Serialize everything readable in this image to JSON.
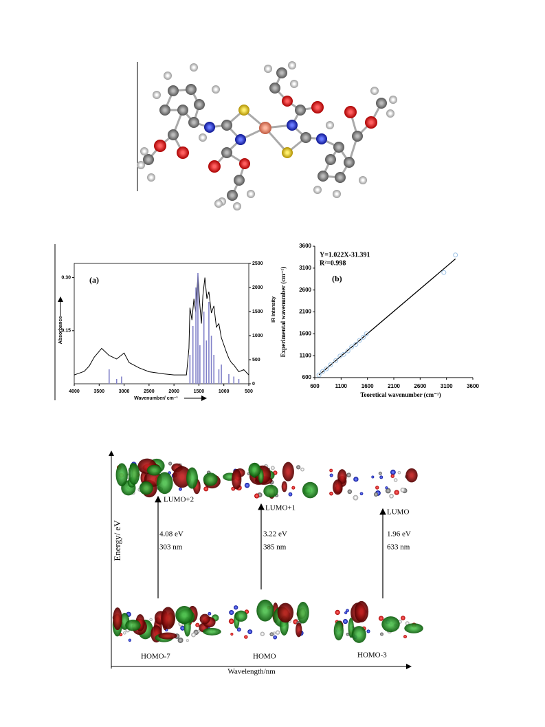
{
  "chart_data": [
    {
      "type": "line",
      "label": "(a)",
      "x_label": "Wavenumber/ cm⁻¹",
      "y_label": "Absorbance",
      "y2_label": "IR Intensity",
      "xlim": [
        4000,
        500
      ],
      "xticks": [
        4000,
        3500,
        3000,
        2500,
        2000,
        1500,
        1000,
        500
      ],
      "ylim": [
        0,
        0.34
      ],
      "yticks": [
        0.15,
        {
          "value": 0.3,
          "label": "0.30"
        }
      ],
      "y2lim": [
        0,
        2500
      ],
      "y2ticks": [
        0,
        500,
        1000,
        1500,
        2000,
        2500
      ],
      "series": [
        {
          "type": "line",
          "color": "#000000",
          "x": [
            4000,
            3900,
            3800,
            3700,
            3600,
            3450,
            3300,
            3150,
            3000,
            2900,
            2700,
            2500,
            2200,
            2000,
            1750,
            1700,
            1680,
            1640,
            1600,
            1560,
            1520,
            1480,
            1450,
            1420,
            1380,
            1340,
            1300,
            1250,
            1200,
            1150,
            1100,
            1050,
            1000,
            950,
            900,
            850,
            800,
            700,
            600,
            500
          ],
          "values": [
            0.025,
            0.03,
            0.035,
            0.05,
            0.075,
            0.1,
            0.08,
            0.07,
            0.087,
            0.06,
            0.045,
            0.034,
            0.028,
            0.025,
            0.025,
            0.1,
            0.215,
            0.18,
            0.24,
            0.2,
            0.31,
            0.22,
            0.17,
            0.25,
            0.3,
            0.24,
            0.26,
            0.2,
            0.22,
            0.16,
            0.17,
            0.13,
            0.11,
            0.09,
            0.072,
            0.06,
            0.053,
            0.034,
            0.04,
            0.025
          ]
        },
        {
          "type": "bar",
          "axis": "y2",
          "color": "#8080c8",
          "x": [
            3300,
            3150,
            3050,
            1680,
            1620,
            1560,
            1520,
            1480,
            1400,
            1350,
            1300,
            1250,
            1200,
            1100,
            1050,
            900,
            800,
            700
          ],
          "values": [
            300,
            100,
            150,
            600,
            1200,
            2000,
            2300,
            800,
            1500,
            900,
            1700,
            1000,
            600,
            300,
            400,
            200,
            150,
            100
          ]
        }
      ]
    },
    {
      "type": "scatter",
      "label": "(b)",
      "x_label": "Teoretical wavenumber (cm⁻¹)",
      "y_label": "Experimental wavenumber (cm⁻¹)",
      "equation": "Y=1.022X-31.391",
      "r_squared": "R²=0.998",
      "trendline": {
        "slope": 1.022,
        "intercept": -31.391
      },
      "xlim": [
        600,
        3600
      ],
      "xticks": [
        600,
        1100,
        1600,
        2100,
        2600,
        3100,
        3600
      ],
      "ylim": [
        600,
        3600
      ],
      "yticks": [
        600,
        1100,
        1600,
        2100,
        2600,
        3100,
        3600
      ],
      "color": "#9ec3e6",
      "x": [
        680,
        750,
        820,
        900,
        1000,
        1080,
        1150,
        1230,
        1300,
        1380,
        1450,
        1520,
        1580,
        3050,
        3270
      ],
      "values": [
        660,
        740,
        800,
        890,
        990,
        1090,
        1130,
        1210,
        1300,
        1360,
        1450,
        1520,
        1600,
        3000,
        3400
      ]
    }
  ],
  "diagram": {
    "y_axis_label": "Energy/ eV",
    "x_axis_label": "Wavelength/nm",
    "transitions": [
      {
        "upper": "LUMO+2",
        "lower": "HOMO-7",
        "energy": "4.08 eV",
        "wavelength": "303 nm"
      },
      {
        "upper": "LUMO+1",
        "lower": "HOMO",
        "energy": "3.22 eV",
        "wavelength": "385 nm"
      },
      {
        "upper": "LUMO",
        "lower": "HOMO-3",
        "energy": "1.96 eV",
        "wavelength": "633 nm"
      }
    ]
  }
}
